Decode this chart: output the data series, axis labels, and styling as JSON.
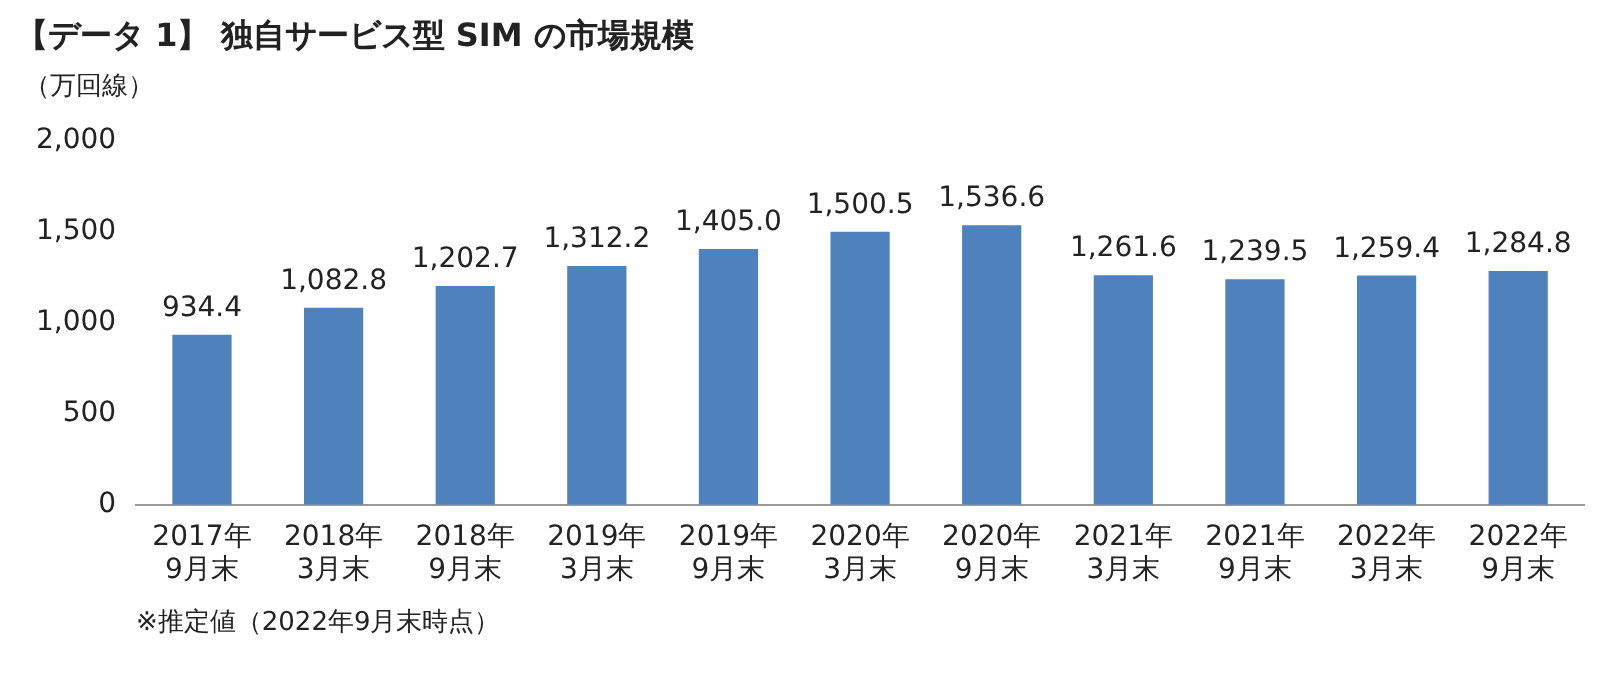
{
  "chart_data": {
    "type": "bar",
    "title": "【データ 1】 独自サービス型 SIM の市場規模",
    "ylabel": "（万回線）",
    "categories": [
      "2017年\n9月末",
      "2018年\n3月末",
      "2018年\n9月末",
      "2019年\n3月末",
      "2019年\n9月末",
      "2020年\n3月末",
      "2020年\n9月末",
      "2021年\n3月末",
      "2021年\n9月末",
      "2022年\n3月末",
      "2022年\n9月末"
    ],
    "values": [
      934.4,
      1082.8,
      1202.7,
      1312.2,
      1405.0,
      1500.5,
      1536.6,
      1261.6,
      1239.5,
      1259.4,
      1284.8
    ],
    "value_labels": [
      "934.4",
      "1,082.8",
      "1,202.7",
      "1,312.2",
      "1,405.0",
      "1,500.5",
      "1,536.6",
      "1,261.6",
      "1,239.5",
      "1,259.4",
      "1,284.8"
    ],
    "color": "#4f81bd",
    "ylim": [
      0,
      2000
    ],
    "yticks": [
      0,
      500,
      {
        "value": 1000,
        "label": "1,000"
      },
      {
        "value": 1500,
        "label": "1,500"
      },
      {
        "value": 2000,
        "label": "2,000"
      }
    ],
    "grid": false,
    "annotations": [
      "※推定値（2022年9月末時点）"
    ]
  }
}
